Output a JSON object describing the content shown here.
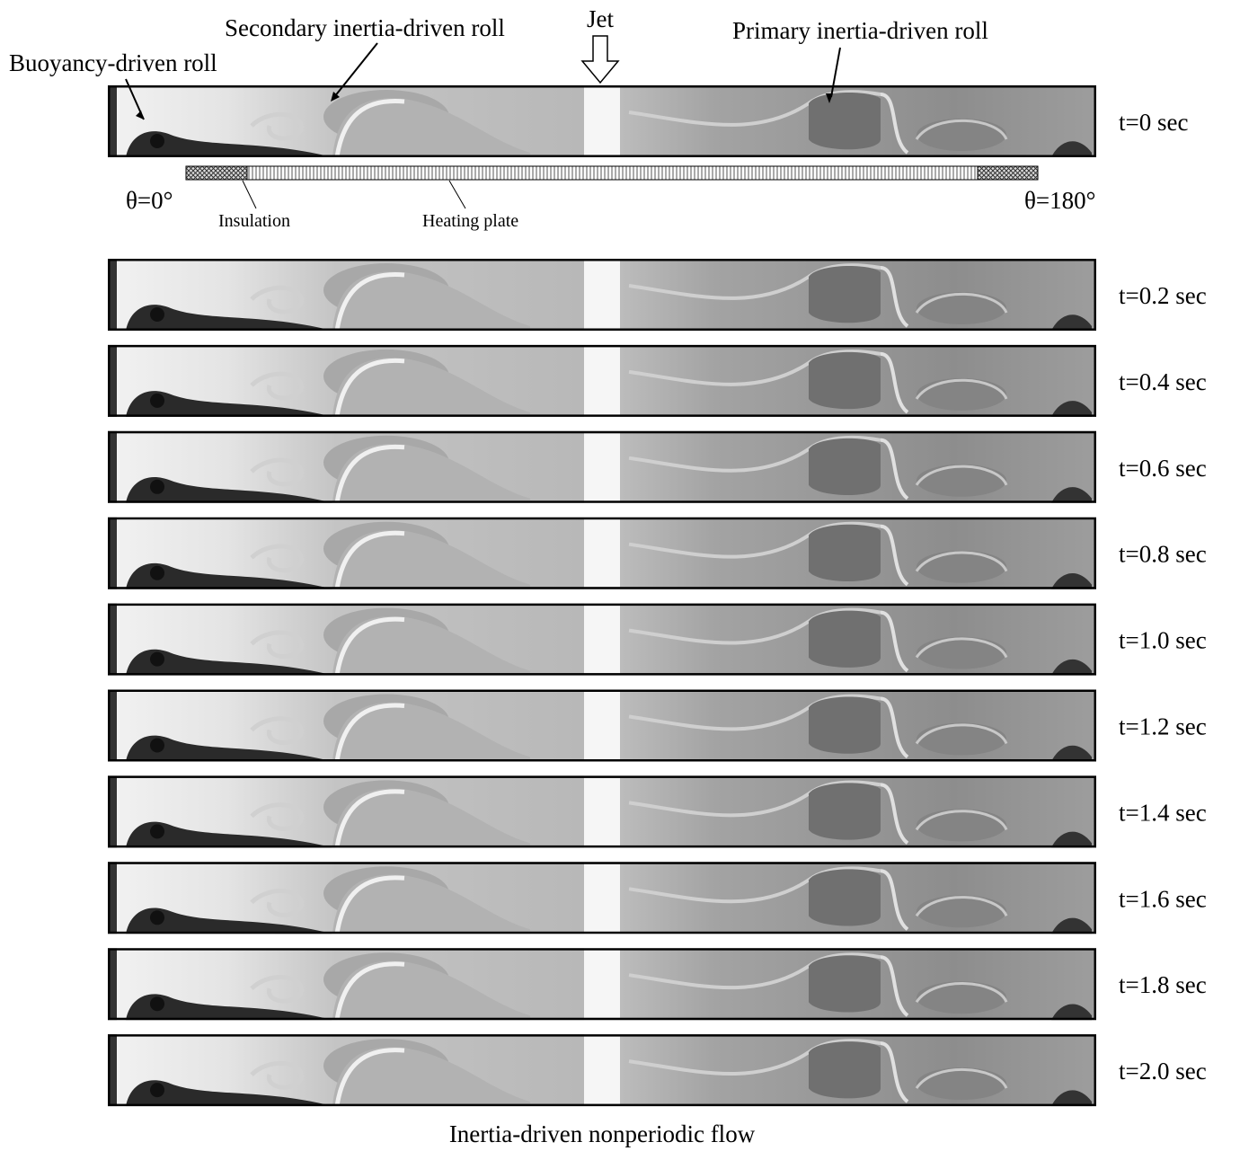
{
  "annotations": {
    "buoyancy_roll": "Buoyancy-driven roll",
    "secondary_roll": "Secondary inertia-driven roll",
    "jet": "Jet",
    "primary_roll": "Primary inertia-driven roll"
  },
  "diagram": {
    "left_angle": "θ=0°",
    "right_angle": "θ=180°",
    "insulation": "Insulation",
    "heating_plate": "Heating plate"
  },
  "frames": [
    {
      "time": "t=0 sec"
    },
    {
      "time": "t=0.2 sec"
    },
    {
      "time": "t=0.4 sec"
    },
    {
      "time": "t=0.6 sec"
    },
    {
      "time": "t=0.8 sec"
    },
    {
      "time": "t=1.0 sec"
    },
    {
      "time": "t=1.2 sec"
    },
    {
      "time": "t=1.4 sec"
    },
    {
      "time": "t=1.6 sec"
    },
    {
      "time": "t=1.8 sec"
    },
    {
      "time": "t=2.0 sec"
    }
  ],
  "caption": "Inertia-driven nonperiodic flow"
}
